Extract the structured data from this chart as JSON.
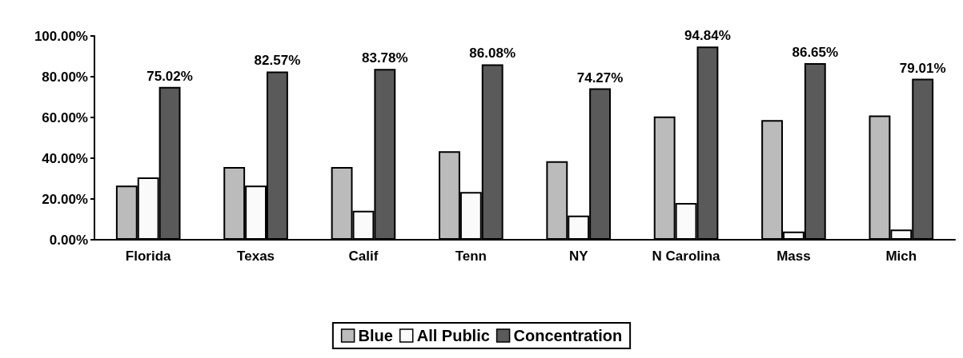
{
  "chart_data": {
    "type": "bar",
    "categories": [
      "Florida",
      "Texas",
      "Calif",
      "Tenn",
      "NY",
      "N Carolina",
      "Mass",
      "Mich"
    ],
    "series": [
      {
        "name": "Blue",
        "color": "#bbbbbb",
        "values": [
          26.6,
          35.7,
          35.7,
          43.4,
          38.5,
          60.5,
          58.7,
          61.0
        ]
      },
      {
        "name": "All Public",
        "color": "#fafafa",
        "values": [
          30.6,
          26.6,
          14.2,
          23.4,
          11.9,
          18.0,
          4,
          5
        ]
      },
      {
        "name": "Concentration",
        "color": "#5a5a5a",
        "values": [
          75.02,
          82.57,
          83.78,
          86.08,
          74.27,
          94.84,
          86.65,
          79.01
        ],
        "value_labels": [
          "75.02%",
          "82.57%",
          "83.78%",
          "86.08%",
          "74.27%",
          "94.84%",
          "86.65%",
          "79.01%"
        ]
      }
    ],
    "ylim": [
      0,
      100
    ],
    "yticks": [
      {
        "value": 0,
        "label": "0.00%"
      },
      {
        "value": 20,
        "label": "20.00%"
      },
      {
        "value": 40,
        "label": "40.00%"
      },
      {
        "value": 60,
        "label": "60.00%"
      },
      {
        "value": 80,
        "label": "80.00%"
      },
      {
        "value": 100,
        "label": "100.00%"
      }
    ],
    "grid": false,
    "legend": "bottom"
  }
}
